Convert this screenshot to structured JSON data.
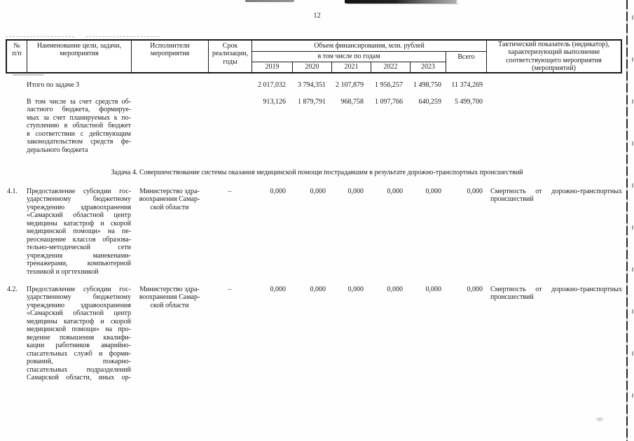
{
  "page_number": "12",
  "table_header": {
    "num_line1": "№",
    "num_line2": "п/п",
    "name": "Наименование цели, задачи, мероприятия",
    "executors": "Исполнители мероприятия",
    "term": "Срок реализации, годы",
    "financing": "Объем финансирования, млн. рублей",
    "by_years": "в том числе по годам",
    "years": [
      "2019",
      "2020",
      "2021",
      "2022",
      "2023"
    ],
    "total": "Всего",
    "indicator": "Тактический показатель (индикатор), характеризующий выполнение соответствующего мероприятия (мероприятий)"
  },
  "rows": {
    "itogo": {
      "label": "Итого по задаче 3",
      "values": [
        "2 017,032",
        "3 794,351",
        "2 107,879",
        "1 956,257",
        "1 498,750",
        "11 374,269"
      ]
    },
    "vtom": {
      "lines": [
        "В том числе за счет средств об-",
        "ластного бюджета, формируе-",
        "мых за счет планируемых к по-",
        "ступлению в областной бюджет",
        "в соответствии с действующим",
        "законодательством средств фе-",
        "дерального бюджета"
      ],
      "values": [
        "913,126",
        "1 879,791",
        "968,758",
        "1 097,766",
        "640,259",
        "5 499,700"
      ]
    },
    "task4_heading": "Задача 4. Совершенствование системы оказания медицинской помощи пострадавшим в результате дорожно-транспортных происшествий",
    "r41": {
      "num": "4.1.",
      "name_lines": [
        "Предоставление субсидии гос-",
        "ударственному бюджетному",
        "учреждению здравоохранения",
        "«Самарский областной центр",
        "медицины катастроф и скорой",
        "медицинской помощи» на пе-",
        "реоснащение классов образова-",
        "тельно-методической сети",
        "учреждения манекенами-",
        "тренажерами, компьютерной",
        "техникой и оргтехникой"
      ],
      "executor_lines": [
        "Министерство здра-",
        "воохранения Самар-",
        "ской области"
      ],
      "term": "–",
      "values": [
        "0,000",
        "0,000",
        "0,000",
        "0,000",
        "0,000",
        "0,000"
      ],
      "indicator_lines": [
        "Смертность от дорожно-транспортных",
        "происшествий"
      ]
    },
    "r42": {
      "num": "4.2.",
      "name_lines": [
        "Предоставление субсидии гос-",
        "ударственному бюджетному",
        "учреждению здравоохранения",
        "«Самарский областной центр",
        "медицины катастроф и скорой",
        "медицинской помощи» на про-",
        "ведение повышения квалифи-",
        "кации работников аварийно-",
        "спасательных служб и форми-",
        "рований, пожарно-",
        "спасательных подразделений",
        "Самарской области, иных ор-"
      ],
      "executor_lines": [
        "Министерство здра-",
        "воохранения Самар-",
        "ской области"
      ],
      "term": "–",
      "values": [
        "0,000",
        "0,000",
        "0,000",
        "0,000",
        "0,000",
        "0,000"
      ],
      "indicator_lines": [
        "Смертность от дорожно-транспортных",
        "происшествий"
      ]
    }
  }
}
